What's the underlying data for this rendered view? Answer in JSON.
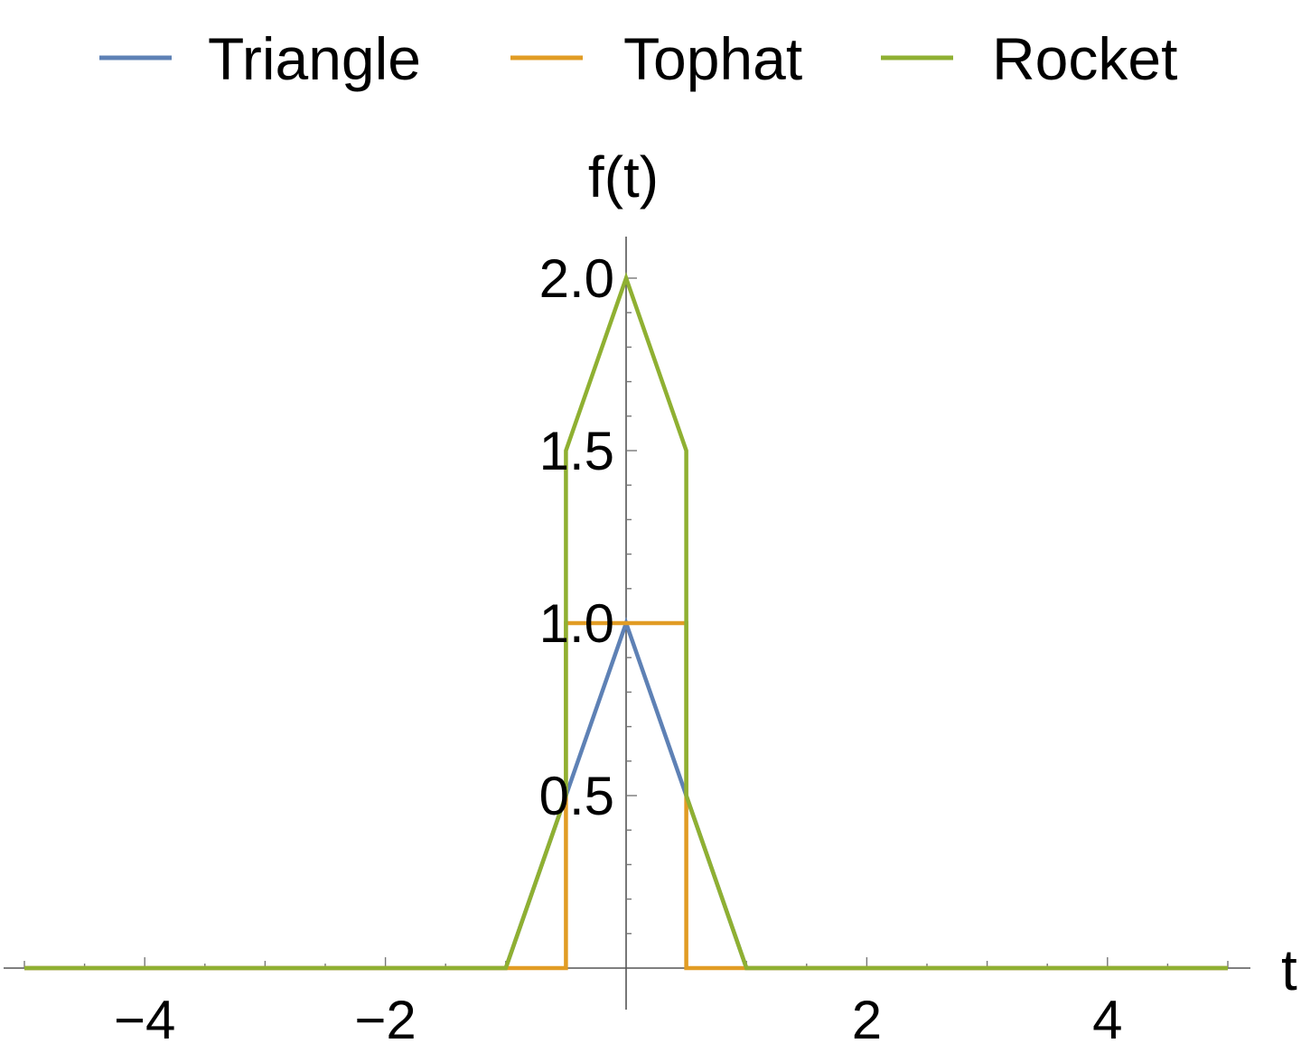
{
  "chart_data": {
    "type": "line",
    "title": "",
    "xlabel": "t",
    "ylabel": "f(t)",
    "xlim": [
      -5.15,
      5.15
    ],
    "ylim": [
      -0.05,
      2.1
    ],
    "x_ticks": [
      {
        "value": -4,
        "label": "−4"
      },
      {
        "value": -2,
        "label": "−2"
      },
      {
        "value": 2,
        "label": "2"
      },
      {
        "value": 4,
        "label": "4"
      }
    ],
    "y_ticks": [
      {
        "value": 0.5,
        "label": "0.5"
      },
      {
        "value": 1.0,
        "label": "1.0"
      },
      {
        "value": 1.5,
        "label": "1.5"
      },
      {
        "value": 2.0,
        "label": "2.0"
      }
    ],
    "grid": false,
    "legend_position": "top",
    "series": [
      {
        "name": "Triangle",
        "color": "#5e81b5",
        "x": [
          -5,
          -1,
          0,
          1,
          5
        ],
        "y": [
          0,
          0,
          1,
          0,
          0
        ]
      },
      {
        "name": "Tophat",
        "color": "#e19c24",
        "x": [
          -5,
          -0.5,
          -0.5,
          0.5,
          0.5,
          5
        ],
        "y": [
          0,
          0,
          1,
          1,
          0,
          0
        ]
      },
      {
        "name": "Rocket",
        "color": "#8fb032",
        "x": [
          -5,
          -1,
          -0.5,
          -0.5,
          0,
          0.5,
          0.5,
          1,
          5
        ],
        "y": [
          0,
          0,
          0.5,
          1.5,
          2,
          1.5,
          0.5,
          0,
          0
        ]
      }
    ]
  }
}
